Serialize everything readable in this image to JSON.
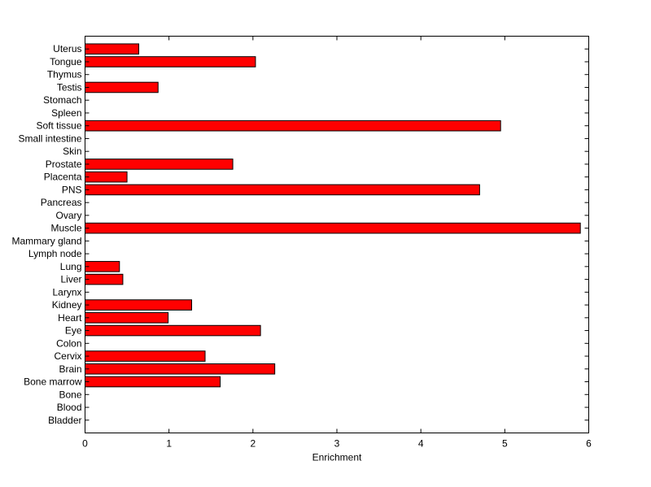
{
  "chart_data": {
    "type": "bar",
    "orientation": "horizontal",
    "xlabel": "Enrichment",
    "ylabel": "",
    "title": "",
    "xlim": [
      0,
      6
    ],
    "xticks": [
      "0",
      "1",
      "2",
      "3",
      "4",
      "5",
      "6"
    ],
    "grid": false,
    "legend": "none",
    "bar_color": "#ff0000",
    "bar_edge_color": "#000000",
    "categories": [
      "Bladder",
      "Blood",
      "Bone",
      "Bone marrow",
      "Brain",
      "Cervix",
      "Colon",
      "Eye",
      "Heart",
      "Kidney",
      "Larynx",
      "Liver",
      "Lung",
      "Lymph node",
      "Mammary gland",
      "Muscle",
      "Ovary",
      "Pancreas",
      "PNS",
      "Placenta",
      "Prostate",
      "Skin",
      "Small intestine",
      "Soft tissue",
      "Spleen",
      "Stomach",
      "Testis",
      "Thymus",
      "Tongue",
      "Uterus"
    ],
    "values": [
      0,
      0,
      0,
      1.61,
      2.26,
      1.43,
      0,
      2.09,
      0.99,
      1.27,
      0,
      0.45,
      0.41,
      0,
      0,
      5.9,
      0,
      0,
      4.7,
      0.5,
      1.76,
      0,
      0,
      4.95,
      0,
      0,
      0.87,
      0,
      2.03,
      0.64
    ]
  }
}
